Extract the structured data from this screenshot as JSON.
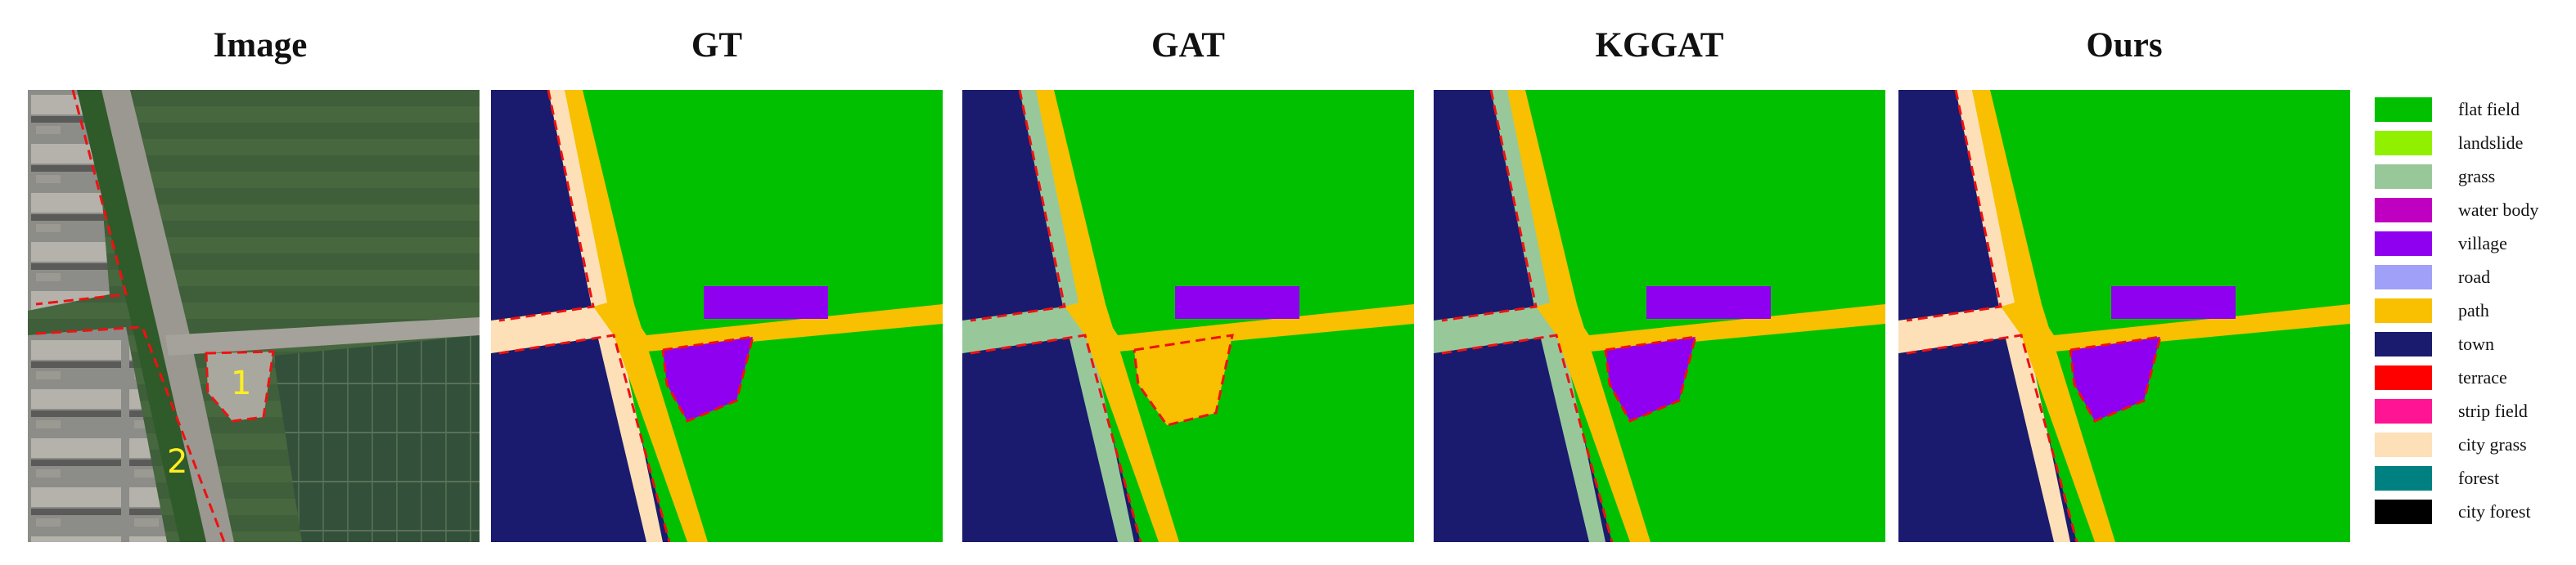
{
  "panels": [
    {
      "title": "Image"
    },
    {
      "title": "GT"
    },
    {
      "title": "GAT"
    },
    {
      "title": "KGGAT"
    },
    {
      "title": "Ours"
    }
  ],
  "image_annotations": [
    "1",
    "2"
  ],
  "legend": [
    {
      "label": "flat field",
      "color": "#00c000"
    },
    {
      "label": "landslide",
      "color": "#90f000"
    },
    {
      "label": "grass",
      "color": "#98c89a"
    },
    {
      "label": "water body",
      "color": "#c000c0"
    },
    {
      "label": "village",
      "color": "#9000f0"
    },
    {
      "label": "road",
      "color": "#a0a0f8"
    },
    {
      "label": "path",
      "color": "#f8c000"
    },
    {
      "label": "town",
      "color": "#1a1a6e"
    },
    {
      "label": "terrace",
      "color": "#ff0000"
    },
    {
      "label": "strip field",
      "color": "#ff1493"
    },
    {
      "label": "city grass",
      "color": "#fde0b8"
    },
    {
      "label": "forest",
      "color": "#008080"
    },
    {
      "label": "city forest",
      "color": "#000000"
    }
  ],
  "colors": {
    "boundary": "#ee1111",
    "annotation_text": "#ffee22"
  }
}
